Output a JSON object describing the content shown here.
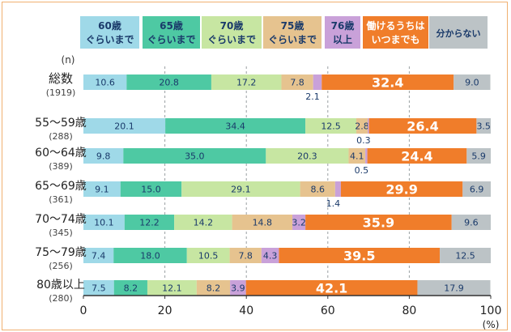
{
  "chart_data": {
    "type": "bar",
    "orientation": "horizontal",
    "stacked": true,
    "unit_label": "(n)",
    "x_unit": "(%)",
    "xlim": [
      0,
      100
    ],
    "xticks": [
      "0",
      "20",
      "40",
      "60",
      "80",
      "100"
    ],
    "grid": "vertical dashed",
    "legend_position": "top",
    "series": [
      {
        "name": "60歳ぐらいまで",
        "lines": [
          "60歳",
          "ぐらいまで"
        ],
        "color": "#9fd9e8",
        "label_color": "#1a3a6a",
        "values": [
          10.6,
          20.1,
          9.8,
          9.1,
          10.1,
          7.4,
          7.5
        ]
      },
      {
        "name": "65歳ぐらいまで",
        "lines": [
          "65歳",
          "ぐらいまで"
        ],
        "color": "#4ec9a3",
        "label_color": "#1a3a6a",
        "values": [
          20.8,
          34.4,
          35.0,
          15.0,
          12.2,
          18.0,
          8.2
        ]
      },
      {
        "name": "70歳ぐらいまで",
        "lines": [
          "70歳",
          "ぐらいまで"
        ],
        "color": "#c7e6a2",
        "label_color": "#1a3a6a",
        "values": [
          17.2,
          12.5,
          20.3,
          29.1,
          14.2,
          10.5,
          12.1
        ]
      },
      {
        "name": "75歳ぐらいまで",
        "lines": [
          "75歳",
          "ぐらいまで"
        ],
        "color": "#e6c38f",
        "label_color": "#1a3a6a",
        "values": [
          7.8,
          2.8,
          4.1,
          8.6,
          14.8,
          7.8,
          8.2
        ]
      },
      {
        "name": "76歳以上",
        "lines": [
          "76歳",
          "以上"
        ],
        "color": "#c9a1d9",
        "label_color": "#1a3a6a",
        "values": [
          2.1,
          0.3,
          0.5,
          1.4,
          3.2,
          4.3,
          3.9
        ]
      },
      {
        "name": "働けるうちはいつまでも",
        "lines": [
          "働けるうちは",
          "いつまでも"
        ],
        "color": "#f07d2a",
        "label_color": "#ffffff",
        "values": [
          32.4,
          26.4,
          24.4,
          29.9,
          35.9,
          39.5,
          42.1
        ]
      },
      {
        "name": "分からない",
        "lines": [
          "分からない"
        ],
        "color": "#bcc3c6",
        "label_color": "#1a3a6a",
        "values": [
          9.0,
          3.5,
          5.9,
          6.9,
          9.6,
          12.5,
          17.9
        ]
      }
    ],
    "categories": [
      {
        "name": "総数",
        "n": "(1919)"
      },
      {
        "name": "55～59歳",
        "n": "(288)"
      },
      {
        "name": "60～64歳",
        "n": "(389)"
      },
      {
        "name": "65～69歳",
        "n": "(361)"
      },
      {
        "name": "70～74歳",
        "n": "(345)"
      },
      {
        "name": "75～79歳",
        "n": "(256)"
      },
      {
        "name": "80歳以上",
        "n": "(280)"
      }
    ],
    "value_labels": [
      [
        "10.6",
        "20.8",
        "17.2",
        "7.8",
        "2.1",
        "32.4",
        "9.0"
      ],
      [
        "20.1",
        "34.4",
        "12.5",
        "2.8",
        "0.3",
        "26.4",
        "3.5"
      ],
      [
        "9.8",
        "35.0",
        "20.3",
        "4.1",
        "0.5",
        "24.4",
        "5.9"
      ],
      [
        "9.1",
        "15.0",
        "29.1",
        "8.6",
        "1.4",
        "29.9",
        "6.9"
      ],
      [
        "10.1",
        "12.2",
        "14.2",
        "14.8",
        "3.2",
        "35.9",
        "9.6"
      ],
      [
        "7.4",
        "18.0",
        "10.5",
        "7.8",
        "4.3",
        "39.5",
        "12.5"
      ],
      [
        "7.5",
        "8.2",
        "12.1",
        "8.2",
        "3.9",
        "42.1",
        "17.9"
      ]
    ]
  }
}
